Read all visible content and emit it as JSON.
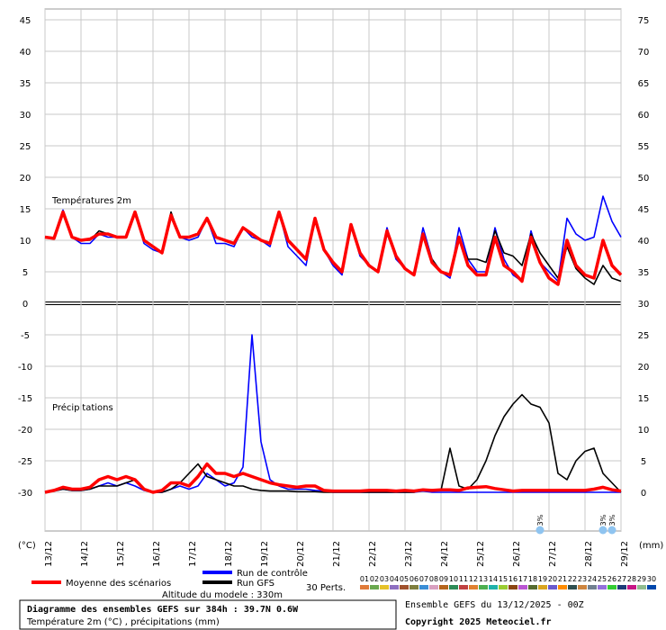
{
  "chart_data": {
    "type": "line",
    "title": "Diagramme des ensembles GEFS sur 384h : 39.7N 0.6W",
    "subtitle": "Température 2m (°C) , précipitations (mm)",
    "run_info": "Ensemble GEFS du 13/12/2025 - 00Z",
    "copyright": "Copyright 2025 Meteociel.fr",
    "altitude": "Altitude du modele : 330m",
    "ylabel": "(°C)",
    "y2label": "(mm)",
    "annotations": [
      "Températures 2m",
      "Précipitations"
    ],
    "xlim": [
      0,
      384
    ],
    "xticks": [
      {
        "value": 0,
        "label": "13/12"
      },
      {
        "value": 24,
        "label": "14/12"
      },
      {
        "value": 48,
        "label": "15/12"
      },
      {
        "value": 72,
        "label": "16/12"
      },
      {
        "value": 96,
        "label": "17/12"
      },
      {
        "value": 120,
        "label": "18/12"
      },
      {
        "value": 144,
        "label": "19/12"
      },
      {
        "value": 168,
        "label": "20/12"
      },
      {
        "value": 192,
        "label": "21/12"
      },
      {
        "value": 216,
        "label": "22/12"
      },
      {
        "value": 240,
        "label": "23/12"
      },
      {
        "value": 264,
        "label": "24/12"
      },
      {
        "value": 288,
        "label": "25/12"
      },
      {
        "value": 312,
        "label": "26/12"
      },
      {
        "value": 336,
        "label": "27/12"
      },
      {
        "value": 360,
        "label": "28/12"
      },
      {
        "value": 384,
        "label": "29/12"
      }
    ],
    "ylim": [
      -30,
      45
    ],
    "yticks": [
      -30,
      -25,
      -20,
      -15,
      -10,
      -5,
      0,
      5,
      10,
      15,
      20,
      25,
      30,
      35,
      40,
      45
    ],
    "y2lim": [
      0,
      75
    ],
    "y2ticks": [
      0,
      5,
      10,
      15,
      20,
      25,
      30,
      35,
      40,
      45,
      50,
      55,
      60,
      65,
      70,
      75
    ],
    "grid": true,
    "x": [
      0,
      6,
      12,
      18,
      24,
      30,
      36,
      42,
      48,
      54,
      60,
      66,
      72,
      78,
      84,
      90,
      96,
      102,
      108,
      114,
      120,
      126,
      132,
      138,
      144,
      150,
      156,
      162,
      168,
      174,
      180,
      186,
      192,
      198,
      204,
      210,
      216,
      222,
      228,
      234,
      240,
      246,
      252,
      258,
      264,
      270,
      276,
      282,
      288,
      294,
      300,
      306,
      312,
      318,
      324,
      330,
      336,
      342,
      348,
      354,
      360,
      366,
      372,
      378,
      384
    ],
    "series": [
      {
        "name": "Moyenne des scénarios",
        "color": "#ff0000",
        "values": [
          10.5,
          10.3,
          14.5,
          10.5,
          10,
          10.2,
          11,
          11,
          10.5,
          10.5,
          14.5,
          10,
          9,
          8,
          14,
          10.5,
          10.5,
          11,
          13.5,
          10.5,
          10,
          9.5,
          12,
          11,
          10,
          9.5,
          14.5,
          10,
          8.5,
          7,
          13.5,
          8.5,
          6.5,
          5,
          12.5,
          8,
          6,
          5,
          11.5,
          7.5,
          5.5,
          4.5,
          11,
          6.5,
          5,
          4.5,
          10.5,
          6,
          4.5,
          4.5,
          10.5,
          6,
          5,
          3.5,
          10.5,
          6.5,
          4,
          3,
          10,
          6,
          4.5,
          4,
          10,
          6,
          4.5
        ],
        "precipitation": [
          0,
          0.3,
          0.8,
          0.5,
          0.5,
          0.8,
          2,
          2.5,
          2,
          2.5,
          2,
          0.5,
          0,
          0.3,
          1.5,
          1.5,
          1,
          2.5,
          4.5,
          3,
          3,
          2.5,
          3,
          2.5,
          2,
          1.5,
          1.2,
          1,
          0.8,
          1,
          1,
          0.3,
          0.2,
          0.2,
          0.2,
          0.2,
          0.3,
          0.3,
          0.3,
          0.2,
          0.3,
          0.2,
          0.4,
          0.3,
          0.4,
          0.4,
          0.3,
          0.7,
          0.8,
          0.9,
          0.6,
          0.4,
          0.2,
          0.3,
          0.3,
          0.3,
          0.3,
          0.3,
          0.3,
          0.3,
          0.3,
          0.5,
          0.8,
          0.4,
          0.2
        ]
      },
      {
        "name": "Run de contrôle",
        "color": "#0000ff",
        "values": [
          10.5,
          10.3,
          14.8,
          10.5,
          9.5,
          9.5,
          11,
          10.5,
          10.5,
          10.5,
          14.5,
          9.5,
          8.5,
          8,
          14,
          10.5,
          10,
          10.5,
          13.5,
          9.5,
          9.5,
          9,
          12,
          10.5,
          10,
          9,
          14.5,
          9,
          7.5,
          6,
          13.5,
          8.5,
          6,
          4.5,
          12.5,
          7.5,
          6,
          5,
          12,
          7,
          5.5,
          4.5,
          12,
          7,
          5,
          4,
          12,
          7,
          5,
          5,
          12,
          7,
          4.5,
          3.5,
          11.5,
          6.5,
          5,
          3.5,
          13.5,
          11,
          10,
          10.5,
          17,
          13,
          10.5
        ],
        "precipitation": [
          0,
          0.2,
          0.5,
          0.3,
          0.3,
          0.5,
          1,
          1.5,
          1,
          1.5,
          1,
          0.3,
          0,
          0,
          0.5,
          1,
          0.5,
          1,
          3,
          2,
          1,
          1.5,
          4,
          25,
          8,
          2,
          1,
          0.5,
          0.5,
          0.5,
          0.3,
          0.2,
          0,
          0,
          0,
          0,
          0,
          0,
          0,
          0,
          0,
          0,
          0.2,
          0,
          0,
          0,
          0,
          0,
          0,
          0,
          0,
          0,
          0,
          0,
          0,
          0,
          0,
          0,
          0,
          0,
          0,
          0,
          0,
          0,
          0
        ]
      },
      {
        "name": "Run GFS",
        "color": "#000000",
        "values": [
          10.5,
          10.3,
          14.5,
          10.5,
          10,
          10,
          11.5,
          11,
          10.5,
          10.5,
          14.5,
          10,
          9,
          8,
          14.5,
          10.5,
          10.5,
          11,
          13.5,
          10.5,
          10,
          9.5,
          12,
          11,
          10,
          9.5,
          14.5,
          10,
          8.5,
          7,
          13.5,
          8.5,
          6.5,
          5,
          12.5,
          8,
          6,
          5,
          11,
          7.5,
          5.5,
          4.5,
          11,
          7,
          5,
          4.5,
          10,
          7,
          7,
          6.5,
          11.5,
          8,
          7.5,
          6,
          11,
          8,
          6,
          4,
          9,
          5.5,
          4,
          3,
          6,
          4,
          3.5
        ],
        "precipitation": [
          0,
          0.2,
          0.5,
          0.3,
          0.3,
          0.5,
          1,
          1,
          1,
          1.5,
          2,
          0.5,
          0,
          0,
          0.5,
          1.5,
          3,
          4.5,
          2.5,
          2,
          1.5,
          1,
          1,
          0.5,
          0.3,
          0.2,
          0.2,
          0.2,
          0.1,
          0.1,
          0.1,
          0,
          0,
          0,
          0,
          0,
          0,
          0,
          0,
          0,
          0,
          0,
          0.5,
          0.3,
          0.3,
          7,
          1,
          0.5,
          2,
          5,
          9,
          12,
          14,
          15.5,
          14,
          13.5,
          11,
          3,
          2,
          5,
          6.5,
          7,
          3,
          1.5,
          0
        ]
      }
    ],
    "perturbations": {
      "label": "30 Perts.",
      "names": [
        "01",
        "02",
        "03",
        "04",
        "05",
        "06",
        "07",
        "08",
        "09",
        "10",
        "11",
        "12",
        "13",
        "14",
        "15",
        "16",
        "17",
        "18",
        "19",
        "20",
        "21",
        "22",
        "23",
        "24",
        "25",
        "26",
        "27",
        "28",
        "29",
        "30"
      ],
      "colors": [
        "#e07b39",
        "#6aa84f",
        "#e6c229",
        "#8e6fc1",
        "#a0522d",
        "#7f7f3f",
        "#3b8ed6",
        "#d9a0c0",
        "#b5651d",
        "#2e8b57",
        "#c04040",
        "#e08030",
        "#4caf50",
        "#20b2aa",
        "#9acd32",
        "#8b4513",
        "#ba55d3",
        "#556b2f",
        "#daa520",
        "#6a5acd",
        "#ff8c00",
        "#2f4f4f",
        "#cd853f",
        "#708090",
        "#9370db",
        "#32cd32",
        "#1e3c78",
        "#c71585",
        "#8fbc8f",
        "#0047ab"
      ]
    },
    "snow_markers": [
      {
        "x": 330,
        "label": "3%"
      },
      {
        "x": 372,
        "label": "3%"
      },
      {
        "x": 378,
        "label": "3%"
      }
    ]
  }
}
